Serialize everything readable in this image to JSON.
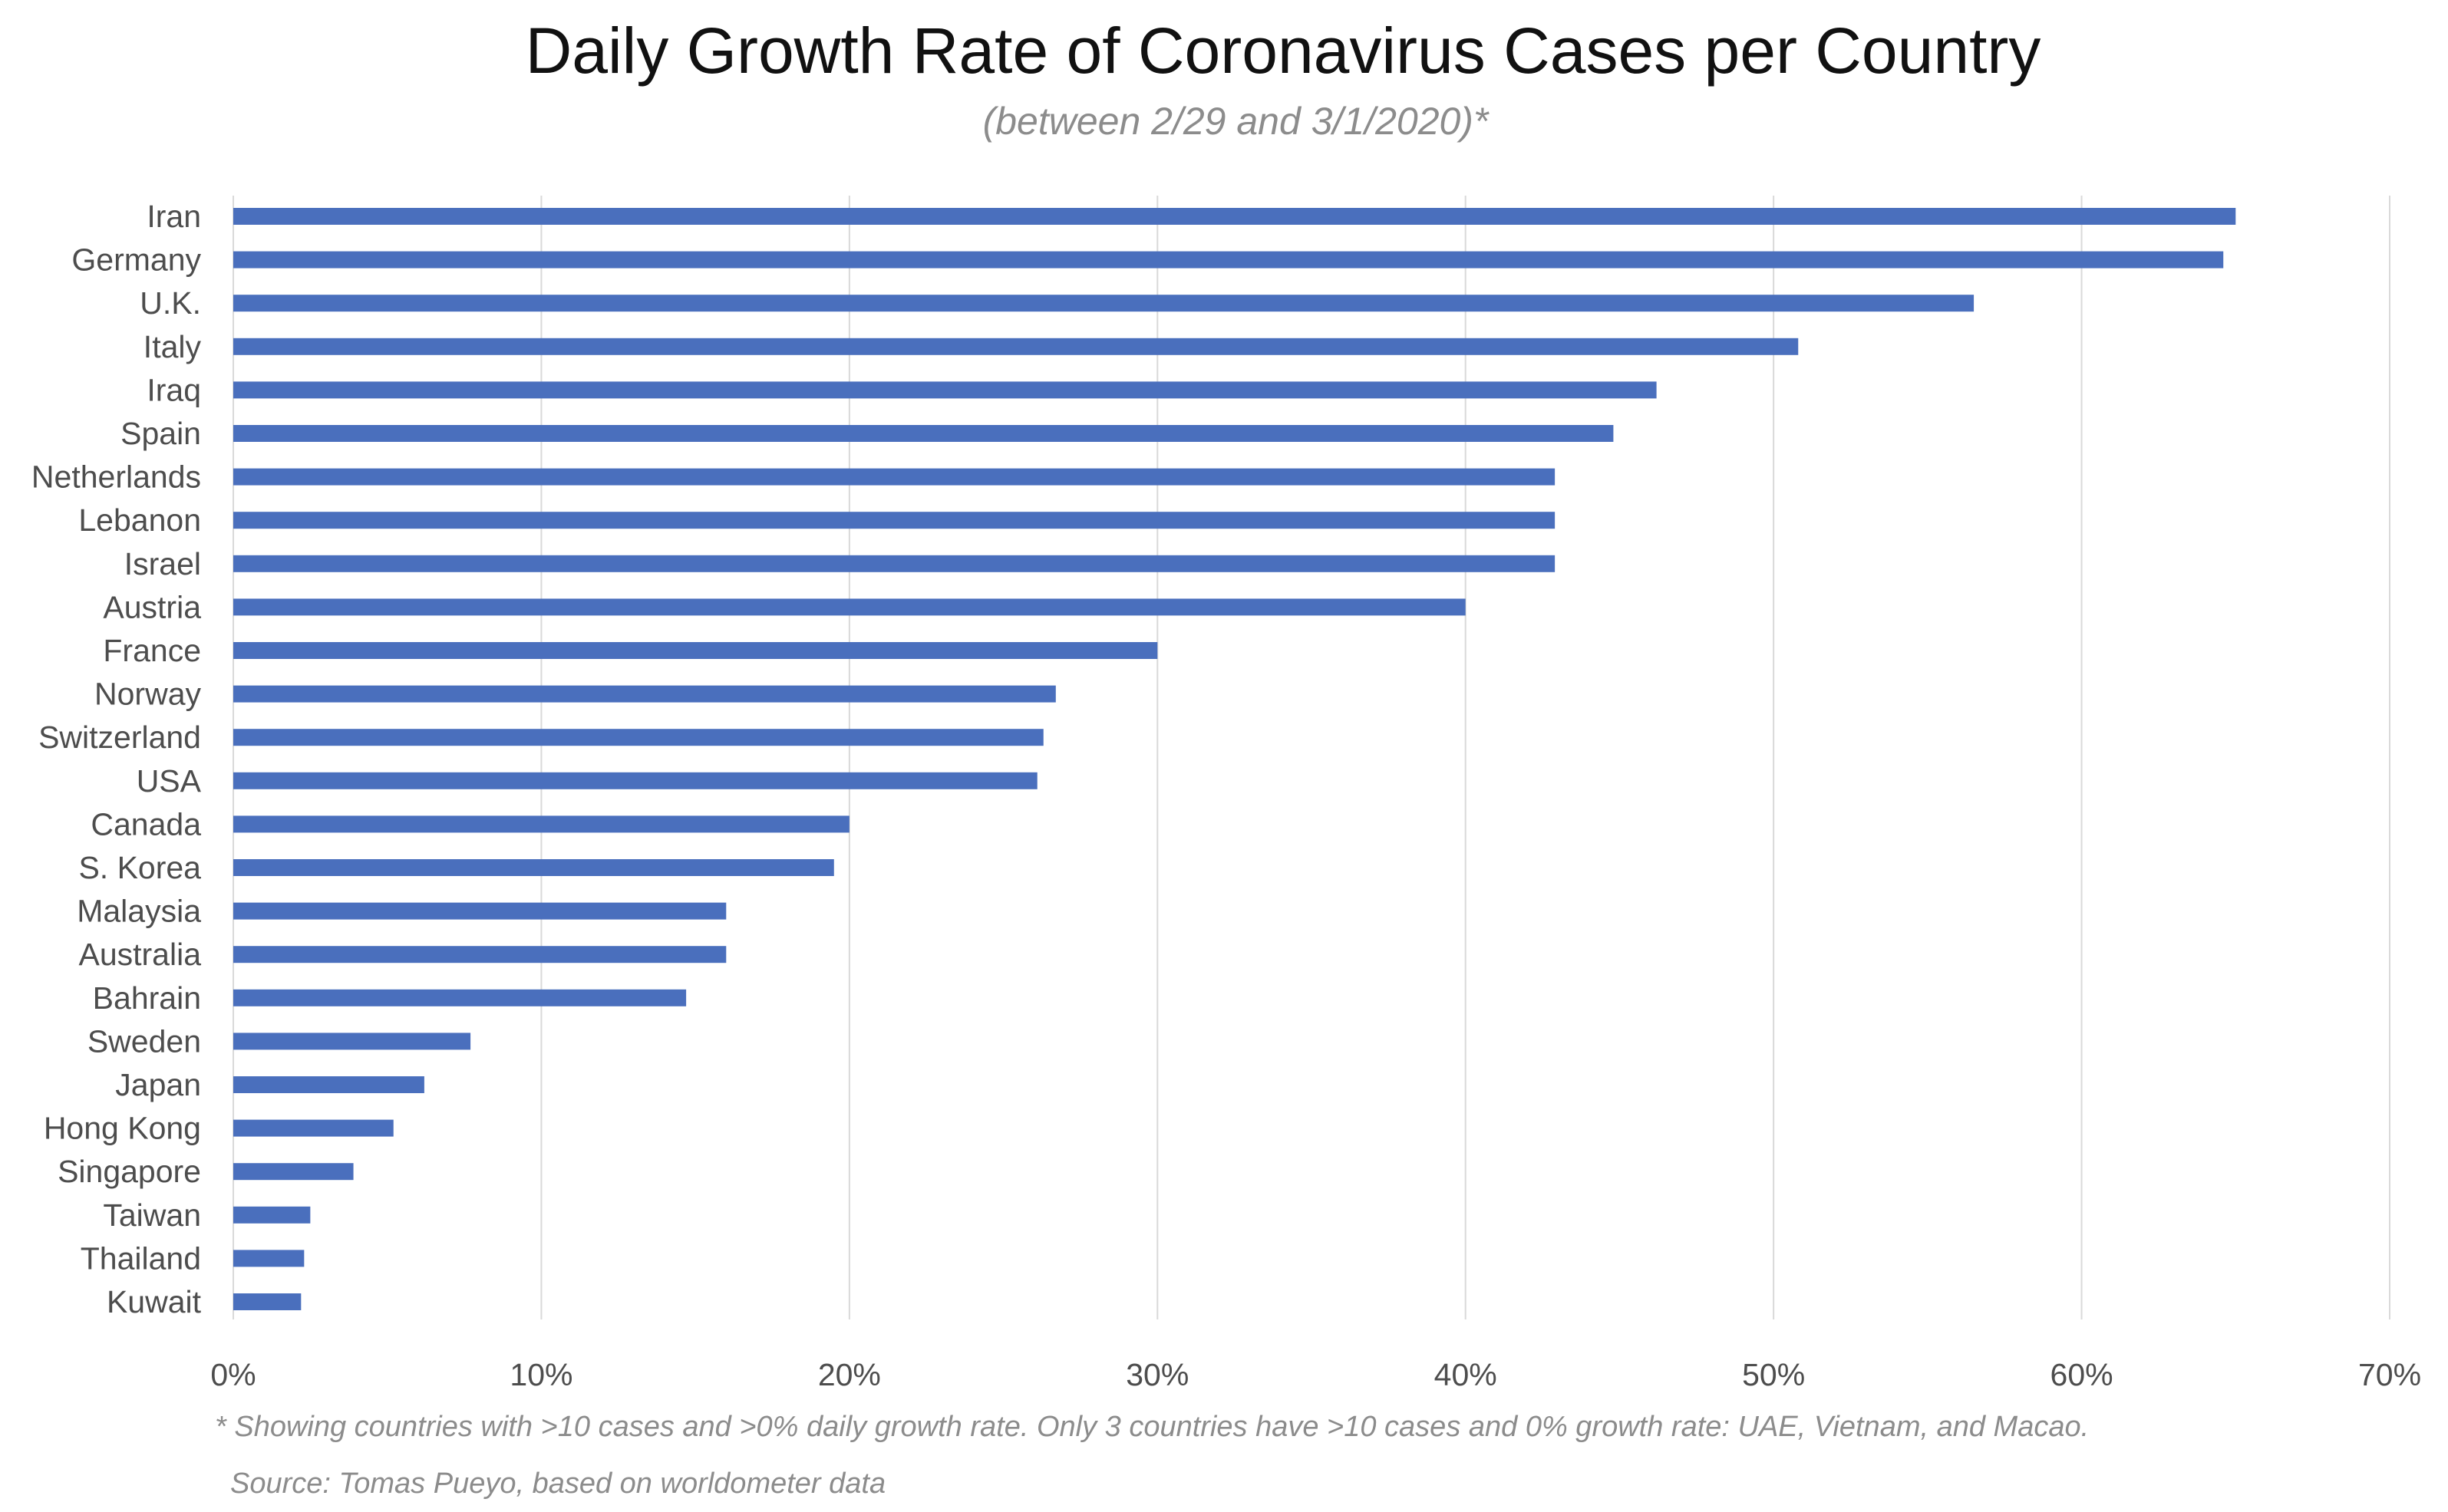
{
  "chart_data": {
    "type": "bar",
    "orientation": "horizontal",
    "title": "Daily Growth Rate of Coronavirus Cases per Country",
    "subtitle": "(between 2/29 and 3/1/2020)*",
    "categories": [
      "Iran",
      "Germany",
      "U.K.",
      "Italy",
      "Iraq",
      "Spain",
      "Netherlands",
      "Lebanon",
      "Israel",
      "Austria",
      "France",
      "Norway",
      "Switzerland",
      "USA",
      "Canada",
      "S. Korea",
      "Malaysia",
      "Australia",
      "Bahrain",
      "Sweden",
      "Japan",
      "Hong Kong",
      "Singapore",
      "Taiwan",
      "Thailand",
      "Kuwait"
    ],
    "values": [
      65,
      64.6,
      56.5,
      50.8,
      46.2,
      44.8,
      42.9,
      42.9,
      42.9,
      40,
      30,
      26.7,
      26.3,
      26.1,
      20,
      19.5,
      16,
      16,
      14.7,
      7.7,
      6.2,
      5.2,
      3.9,
      2.5,
      2.3,
      2.2
    ],
    "value_unit": "%",
    "xlim": [
      0,
      70
    ],
    "xticks": [
      "0%",
      "10%",
      "20%",
      "30%",
      "40%",
      "50%",
      "60%",
      "70%"
    ],
    "xlabel": "",
    "ylabel": "",
    "grid": "vertical",
    "bar_color": "#4a6fbd",
    "grid_color": "#d9d9d9",
    "footnote": "* Showing countries with >10 cases and >0% daily growth rate. Only 3 countries have >10 cases and 0% growth rate: UAE, Vietnam, and Macao.",
    "source": "Source: Tomas Pueyo, based on worldometer data"
  }
}
